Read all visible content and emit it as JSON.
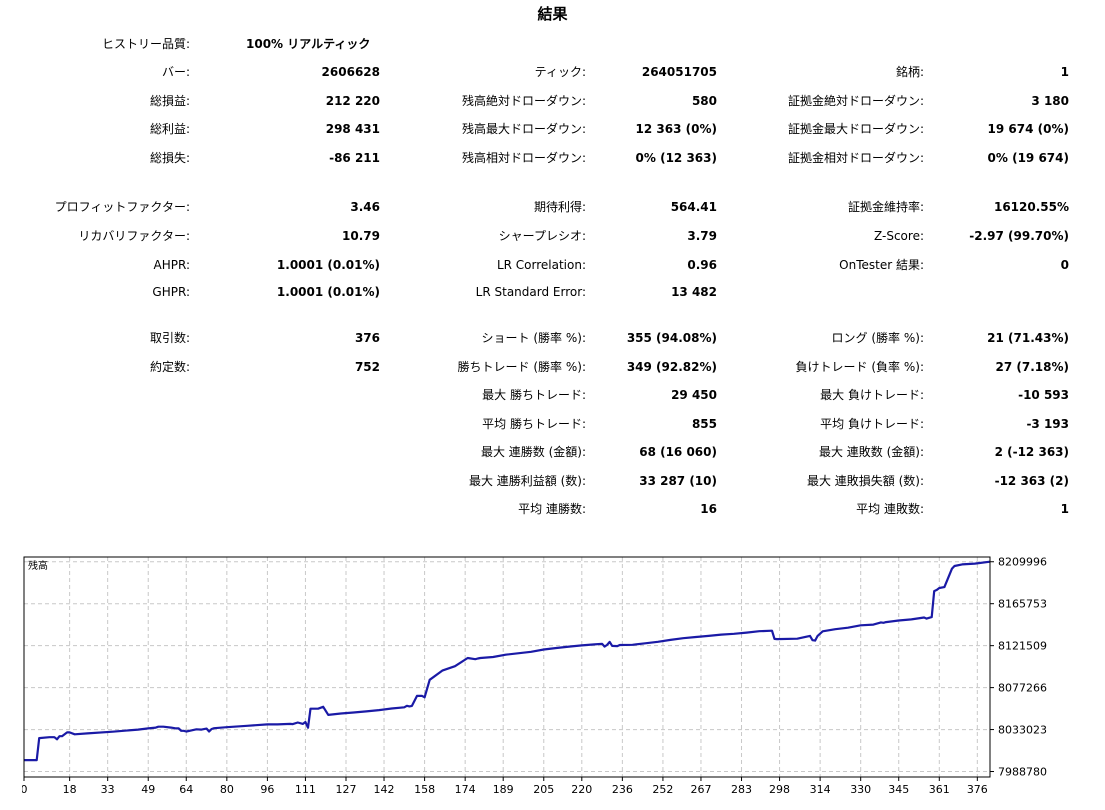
{
  "header": {
    "title": "結果"
  },
  "history_quality": {
    "label": "ヒストリー品質:",
    "value": "100% リアルティック"
  },
  "rows": [
    {
      "top": 64,
      "cells": [
        {
          "label": "バー:",
          "value": "2606628"
        },
        {
          "label": "ティック:",
          "value": "264051705"
        },
        {
          "label": "銘柄:",
          "value": "1"
        }
      ]
    },
    {
      "top": 93,
      "cells": [
        {
          "label": "総損益:",
          "value": "212 220"
        },
        {
          "label": "残高絶対ドローダウン:",
          "value": "580"
        },
        {
          "label": "証拠金絶対ドローダウン:",
          "value": "3 180"
        }
      ]
    },
    {
      "top": 121,
      "cells": [
        {
          "label": "総利益:",
          "value": "298 431"
        },
        {
          "label": "残高最大ドローダウン:",
          "value": "12 363 (0%)"
        },
        {
          "label": "証拠金最大ドローダウン:",
          "value": "19 674 (0%)"
        }
      ]
    },
    {
      "top": 150,
      "cells": [
        {
          "label": "総損失:",
          "value": "-86 211"
        },
        {
          "label": "残高相対ドローダウン:",
          "value": "0% (12 363)"
        },
        {
          "label": "証拠金相対ドローダウン:",
          "value": "0% (19 674)"
        }
      ]
    },
    {
      "top": 199,
      "cells": [
        {
          "label": "プロフィットファクター:",
          "value": "3.46"
        },
        {
          "label": "期待利得:",
          "value": "564.41"
        },
        {
          "label": "証拠金維持率:",
          "value": "16120.55%"
        }
      ]
    },
    {
      "top": 228,
      "cells": [
        {
          "label": "リカバリファクター:",
          "value": "10.79"
        },
        {
          "label": "シャープレシオ:",
          "value": "3.79"
        },
        {
          "label": "Z-Score:",
          "value": "-2.97 (99.70%)"
        }
      ]
    },
    {
      "top": 257,
      "cells": [
        {
          "label": "AHPR:",
          "value": "1.0001 (0.01%)"
        },
        {
          "label": "LR Correlation:",
          "value": "0.96"
        },
        {
          "label": "OnTester 結果:",
          "value": "0"
        }
      ]
    },
    {
      "top": 284,
      "cells": [
        {
          "label": "GHPR:",
          "value": "1.0001 (0.01%)"
        },
        {
          "label": "LR Standard Error:",
          "value": "13 482"
        },
        null
      ]
    },
    {
      "top": 330,
      "cells": [
        {
          "label": "取引数:",
          "value": "376"
        },
        {
          "label": "ショート (勝率 %):",
          "value": "355 (94.08%)"
        },
        {
          "label": "ロング (勝率 %):",
          "value": "21 (71.43%)"
        }
      ]
    },
    {
      "top": 359,
      "cells": [
        {
          "label": "約定数:",
          "value": "752"
        },
        {
          "label": "勝ちトレード (勝率 %):",
          "value": "349 (92.82%)"
        },
        {
          "label": "負けトレード (負率 %):",
          "value": "27 (7.18%)"
        }
      ]
    },
    {
      "top": 387,
      "cells": [
        null,
        {
          "label": "最大 勝ちトレード:",
          "value": "29 450"
        },
        {
          "label": "最大 負けトレード:",
          "value": "-10 593"
        }
      ]
    },
    {
      "top": 416,
      "cells": [
        null,
        {
          "label": "平均 勝ちトレード:",
          "value": "855"
        },
        {
          "label": "平均 負けトレード:",
          "value": "-3 193"
        }
      ]
    },
    {
      "top": 444,
      "cells": [
        null,
        {
          "label": "最大 連勝数 (金額):",
          "value": "68 (16 060)"
        },
        {
          "label": "最大 連敗数 (金額):",
          "value": "2 (-12 363)"
        }
      ]
    },
    {
      "top": 473,
      "cells": [
        null,
        {
          "label": "最大 連勝利益額 (数):",
          "value": "33 287 (10)"
        },
        {
          "label": "最大 連敗損失額 (数):",
          "value": "-12 363 (2)"
        }
      ]
    },
    {
      "top": 501,
      "cells": [
        null,
        {
          "label": "平均 連勝数:",
          "value": "16"
        },
        {
          "label": "平均 連敗数:",
          "value": "1"
        }
      ]
    }
  ],
  "chart_data": {
    "type": "line",
    "legend": "残高",
    "line_color": "#1a1aa6",
    "grid": true,
    "x_ticks": [
      0,
      18,
      33,
      49,
      64,
      80,
      96,
      111,
      127,
      142,
      158,
      174,
      189,
      205,
      220,
      236,
      252,
      267,
      283,
      298,
      314,
      330,
      345,
      361,
      376
    ],
    "x_tick_labels": [
      "0",
      "18",
      "33",
      "49",
      "64",
      "80",
      "96",
      "111",
      "127",
      "142",
      "158",
      "174",
      "189",
      "205",
      "220",
      "236",
      "252",
      "267",
      "283",
      "298",
      "314",
      "330",
      "345",
      "361",
      "376"
    ],
    "y_ticks": [
      7988780,
      8033023,
      8077266,
      8121509,
      8165753,
      8209996
    ],
    "y_tick_labels": [
      "7988780",
      "8033023",
      "8077266",
      "8121509",
      "8165753",
      "8209996"
    ],
    "xlim": [
      0,
      381
    ],
    "ylim": [
      7983000,
      8215000
    ],
    "x": [
      0,
      5,
      6,
      10,
      12,
      13,
      14,
      15,
      17,
      18,
      20,
      25,
      35,
      45,
      49,
      52,
      53,
      55,
      58,
      60,
      61,
      62,
      63,
      64,
      66,
      68,
      70,
      72,
      73,
      74,
      75,
      80,
      88,
      96,
      100,
      105,
      106,
      108,
      110,
      111,
      112,
      113,
      116,
      118,
      120,
      125,
      130,
      135,
      140,
      145,
      150,
      151,
      152,
      153,
      155,
      157,
      158,
      160,
      165,
      170,
      175,
      178,
      179,
      180,
      185,
      190,
      200,
      205,
      210,
      215,
      220,
      225,
      228,
      229,
      230,
      231,
      232,
      234,
      235,
      240,
      245,
      250,
      255,
      260,
      265,
      270,
      275,
      280,
      285,
      290,
      295,
      296,
      297,
      305,
      310,
      311,
      312,
      313,
      315,
      320,
      325,
      330,
      335,
      338,
      339,
      340,
      345,
      350,
      355,
      356,
      358,
      359,
      360,
      361,
      363,
      366,
      367,
      370,
      375,
      381
    ],
    "y": [
      8000800,
      8000800,
      8024000,
      8025000,
      8025000,
      8022800,
      8026000,
      8026000,
      8030000,
      8030000,
      8028000,
      8029000,
      8030800,
      8033000,
      8034300,
      8035100,
      8036000,
      8036000,
      8035100,
      8034300,
      8034300,
      8031700,
      8031700,
      8031000,
      8032100,
      8033300,
      8033000,
      8034000,
      8031000,
      8033600,
      8034500,
      8035500,
      8037000,
      8038500,
      8038500,
      8039000,
      8038800,
      8040500,
      8039000,
      8041000,
      8035000,
      8055000,
      8055000,
      8057000,
      8048500,
      8050000,
      8051000,
      8052200,
      8053500,
      8055200,
      8056500,
      8058100,
      8057500,
      8058000,
      8068500,
      8068500,
      8067000,
      8085500,
      8095200,
      8099800,
      8108500,
      8107200,
      8108000,
      8108500,
      8109500,
      8112000,
      8115000,
      8117500,
      8119000,
      8120500,
      8121800,
      8122800,
      8123500,
      8120500,
      8122300,
      8125500,
      8121300,
      8121000,
      8122200,
      8122400,
      8124000,
      8125600,
      8127600,
      8129400,
      8130600,
      8131800,
      8133200,
      8134000,
      8135300,
      8136800,
      8137300,
      8128600,
      8128400,
      8128800,
      8131800,
      8127300,
      8126800,
      8131800,
      8136600,
      8138900,
      8140400,
      8143000,
      8143700,
      8146000,
      8145600,
      8146400,
      8148000,
      8149200,
      8151200,
      8150000,
      8151600,
      8179000,
      8180300,
      8182300,
      8183300,
      8202800,
      8205500,
      8207200,
      8208000,
      8210000
    ]
  }
}
